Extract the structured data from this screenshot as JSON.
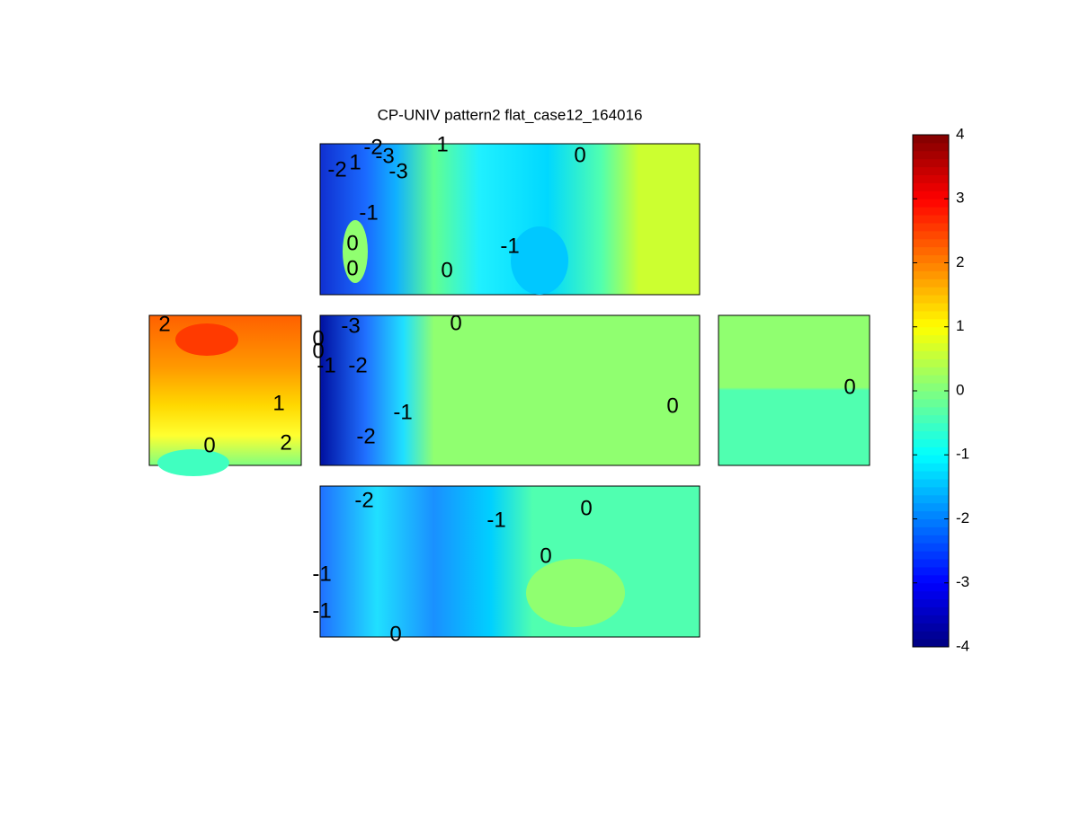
{
  "chart_data": {
    "type": "contour",
    "title": "CP-UNIV pattern2 flat_case12_164016",
    "clim": [
      -4,
      4
    ],
    "colorbar_ticks": [
      -4,
      -3,
      -2,
      -1,
      0,
      1,
      2,
      3,
      4
    ],
    "colormap": "jet",
    "panels": [
      {
        "contour_labels": [
          -2,
          -3,
          1,
          0,
          -2,
          1,
          -3,
          -1,
          0,
          -1,
          0,
          0
        ]
      },
      {
        "contour_labels": [
          2,
          1,
          0,
          2
        ]
      },
      {
        "contour_labels": [
          -3,
          0,
          0,
          0,
          -1,
          -2,
          -1,
          0,
          -2
        ]
      },
      {
        "contour_labels": [
          0
        ]
      },
      {
        "contour_labels": [
          -2,
          -1,
          0,
          0,
          -1,
          -1,
          0
        ]
      }
    ]
  }
}
